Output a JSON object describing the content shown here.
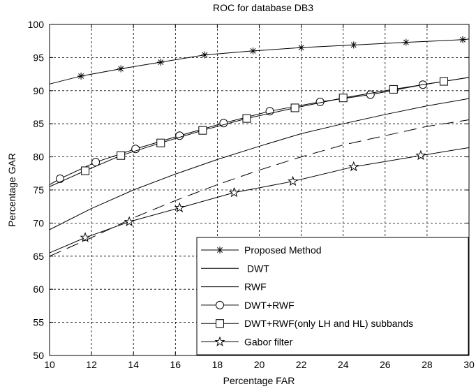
{
  "chart_data": {
    "type": "line",
    "title": "ROC for database DB3",
    "xlabel": "Percentage FAR",
    "ylabel": "Percentage GAR",
    "xlim": [
      10,
      30
    ],
    "ylim": [
      50,
      100
    ],
    "xticks": [
      10,
      12,
      14,
      16,
      18,
      20,
      22,
      24,
      26,
      28,
      30
    ],
    "yticks": [
      50,
      55,
      60,
      65,
      70,
      75,
      80,
      85,
      90,
      95,
      100
    ],
    "grid": "dashed",
    "legend_position": "bottom-right",
    "series": [
      {
        "name": "Proposed Method",
        "marker": "asterisk",
        "dash": "solid",
        "x": [
          10,
          11.5,
          13.4,
          15.3,
          17.4,
          19.7,
          22,
          24.5,
          27,
          29.7,
          30
        ],
        "y": [
          91.0,
          92.2,
          93.3,
          94.3,
          95.4,
          96.0,
          96.5,
          96.9,
          97.3,
          97.7,
          97.8
        ]
      },
      {
        "name": " DWT",
        "marker": "none",
        "dash": "solid",
        "x": [
          10,
          12,
          14,
          16,
          18,
          20,
          22,
          24,
          26,
          28,
          30
        ],
        "y": [
          69.0,
          72.2,
          75.0,
          77.4,
          79.6,
          81.6,
          83.5,
          85.0,
          86.4,
          87.7,
          88.8
        ]
      },
      {
        "name": "RWF",
        "marker": "none",
        "dash": "dashed",
        "x": [
          10,
          12,
          14,
          16,
          18,
          20,
          22,
          24,
          26,
          28,
          30
        ],
        "y": [
          65.0,
          67.8,
          70.8,
          73.4,
          75.8,
          78.0,
          80.0,
          81.8,
          83.2,
          84.6,
          85.6
        ]
      },
      {
        "name": "DWT+RWF",
        "marker": "circle",
        "dash": "solid",
        "x": [
          10,
          10.5,
          12.2,
          14.1,
          16.2,
          18.3,
          20.5,
          22.9,
          25.3,
          27.8,
          30
        ],
        "y": [
          75.8,
          76.7,
          79.2,
          81.2,
          83.2,
          85.1,
          86.9,
          88.3,
          89.4,
          90.9,
          92.0
        ]
      },
      {
        "name": "DWT+RWF(only LH and HL) subbands",
        "marker": "square",
        "dash": "solid",
        "x": [
          10,
          11.7,
          13.4,
          15.3,
          17.3,
          19.4,
          21.7,
          24.0,
          26.4,
          28.8,
          30
        ],
        "y": [
          75.5,
          77.9,
          80.2,
          82.1,
          84.0,
          85.8,
          87.4,
          88.9,
          90.2,
          91.4,
          92.0
        ]
      },
      {
        "name": "Gabor filter",
        "marker": "star",
        "dash": "solid",
        "x": [
          10,
          11.7,
          13.8,
          16.2,
          18.8,
          21.6,
          24.5,
          27.7,
          30
        ],
        "y": [
          65.5,
          67.8,
          70.2,
          72.3,
          74.6,
          76.3,
          78.5,
          80.2,
          81.4
        ]
      }
    ]
  }
}
